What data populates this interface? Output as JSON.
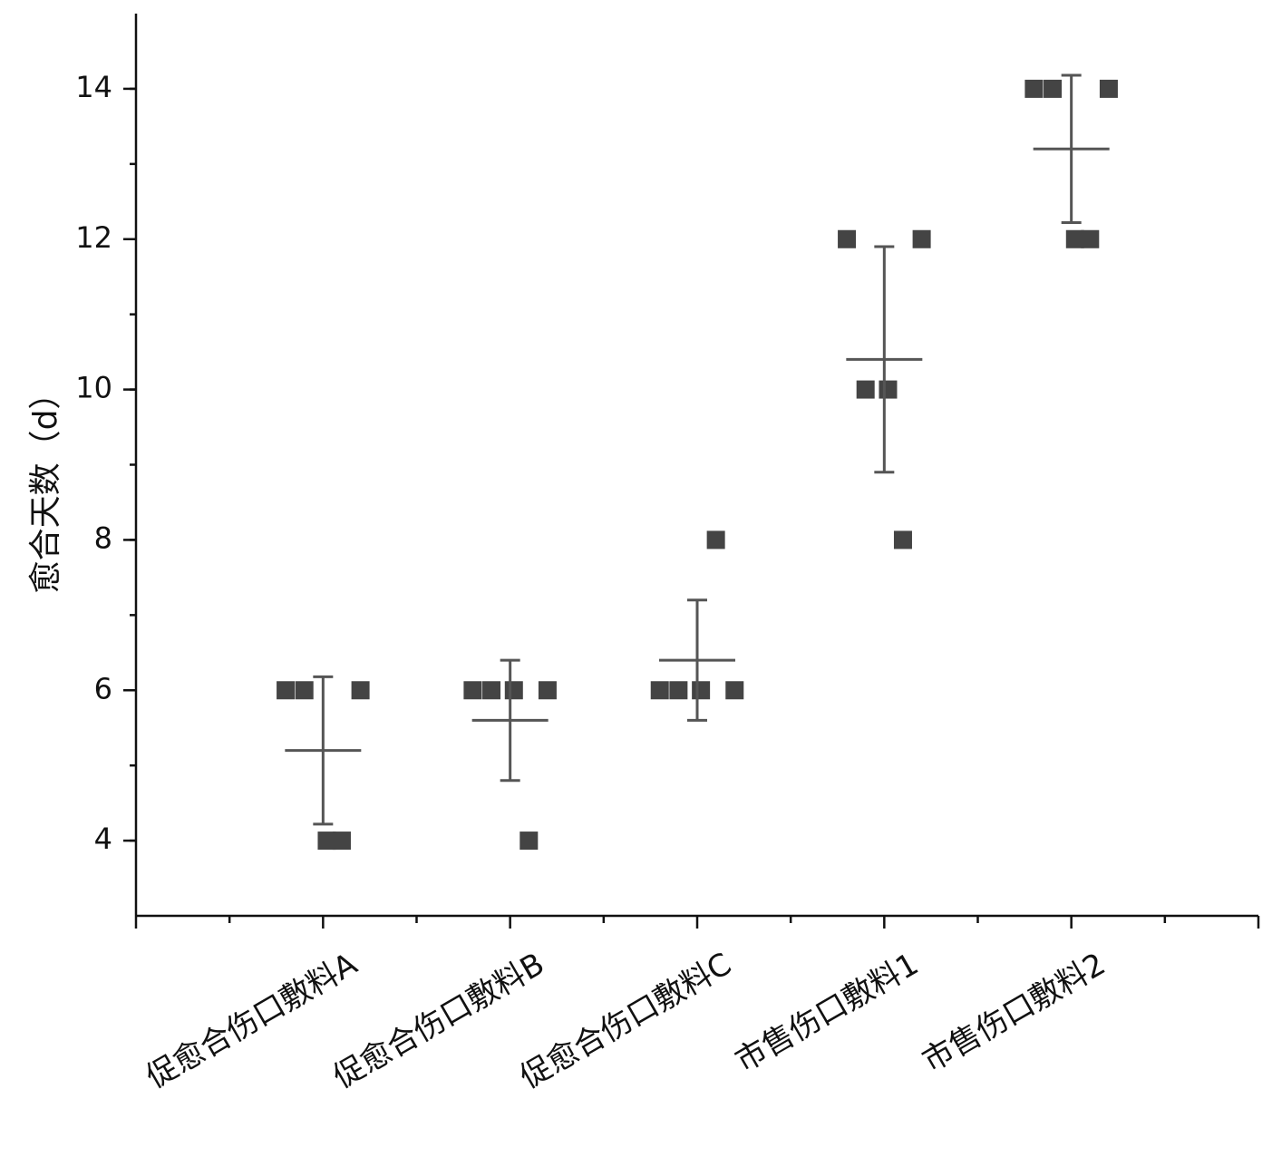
{
  "chart_data": {
    "type": "dot",
    "y_label": "愈合天数（d）",
    "categories": [
      "促愈合伤口敷料A",
      "促愈合伤口敷料B",
      "促愈合伤口敷料C",
      "市售伤口敷料1",
      "市售伤口敷料2"
    ],
    "values": [
      [
        6,
        6,
        6,
        4,
        4
      ],
      [
        6,
        6,
        6,
        6,
        4
      ],
      [
        6,
        6,
        6,
        6,
        8
      ],
      [
        12,
        10,
        12,
        10,
        8
      ],
      [
        14,
        14,
        14,
        12,
        12
      ]
    ],
    "mean": [
      5.2,
      5.6,
      6.4,
      10.4,
      13.2
    ],
    "sd": [
      0.98,
      0.8,
      0.8,
      1.5,
      0.98
    ],
    "color": "#444444",
    "bar_color": "#555555",
    "ylim": [
      3,
      15
    ],
    "yticks": [
      4,
      6,
      8,
      10,
      12,
      14
    ]
  }
}
